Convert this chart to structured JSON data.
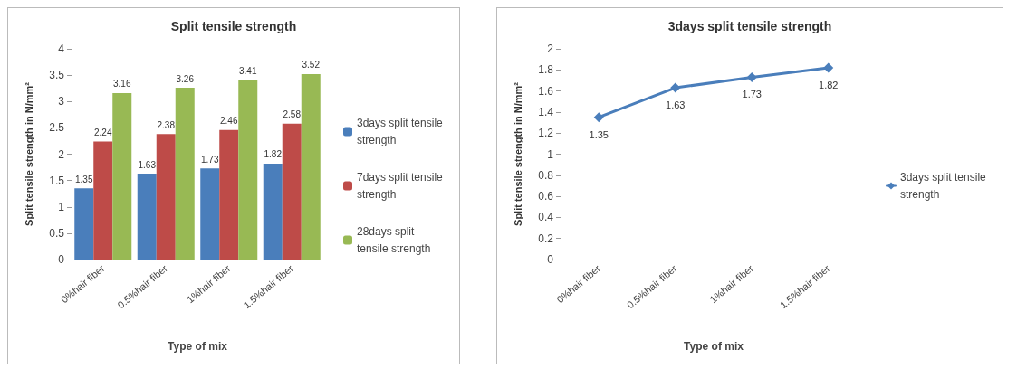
{
  "chart_data": [
    {
      "type": "bar",
      "title": "Split tensile strength",
      "xlabel": "Type of mix",
      "ylabel": "Split tensile strength in N/mm²",
      "categories": [
        "0%hair fiber",
        "0.5%hair fiber",
        "1%hair fiber",
        "1.5%hair fiber"
      ],
      "series": [
        {
          "name": "3days split tensile strength",
          "color": "#4a7ebb",
          "values": [
            1.35,
            1.63,
            1.73,
            1.82
          ]
        },
        {
          "name": "7days split tensile strength",
          "color": "#be4b48",
          "values": [
            2.24,
            2.38,
            2.46,
            2.58
          ]
        },
        {
          "name": "28days split tensile strength",
          "color": "#98b954",
          "values": [
            3.16,
            3.26,
            3.41,
            3.52
          ]
        }
      ],
      "ylim": [
        0,
        4
      ],
      "yticks": [
        0,
        0.5,
        1,
        1.5,
        2,
        2.5,
        3,
        3.5,
        4
      ],
      "grid": false,
      "legend": "right",
      "data_labels": true
    },
    {
      "type": "line",
      "title": "3days split tensile strength",
      "xlabel": "Type of mix",
      "ylabel": "Split tensile strength in N/mm²",
      "categories": [
        "0%hair fiber",
        "0.5%hair fiber",
        "1%hair fiber",
        "1.5%hair fiber"
      ],
      "series": [
        {
          "name": "3days split tensile strength",
          "color": "#4a7ebb",
          "values": [
            1.35,
            1.63,
            1.73,
            1.82
          ]
        }
      ],
      "ylim": [
        0,
        2
      ],
      "yticks": [
        0,
        0.2,
        0.4,
        0.6,
        0.8,
        1,
        1.2,
        1.4,
        1.6,
        1.8,
        2
      ],
      "grid": false,
      "legend": "right",
      "data_labels": true,
      "marker": "diamond",
      "line_style": "solid"
    }
  ]
}
